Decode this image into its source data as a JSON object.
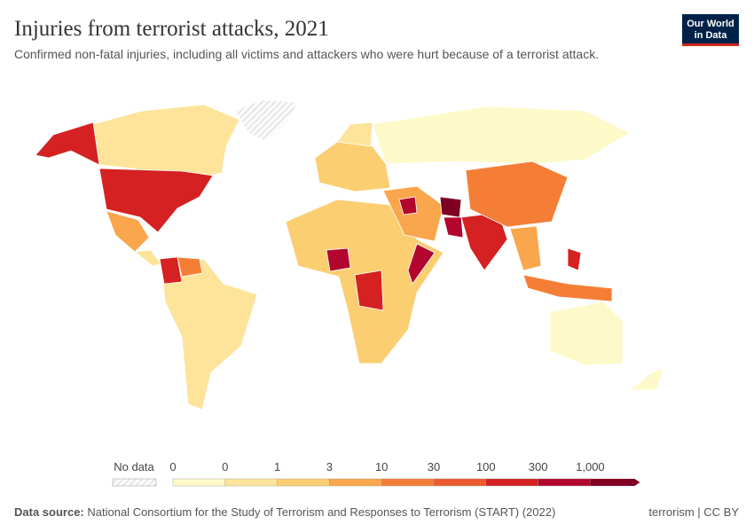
{
  "header": {
    "title": "Injuries from terrorist attacks, 2021",
    "subtitle": "Confirmed non-fatal injuries, including all victims and attackers who were hurt because of a terrorist attack.",
    "logo": [
      "Our World",
      "in Data"
    ]
  },
  "legend": {
    "no_data": "No data",
    "ticks": [
      "0",
      "0",
      "1",
      "3",
      "10",
      "30",
      "100",
      "300",
      "1,000"
    ],
    "colors": [
      "#fef9c9",
      "#fde49a",
      "#fcce72",
      "#f9a64c",
      "#f57e36",
      "#ec5a2e",
      "#d52121",
      "#b3062e",
      "#7e0023"
    ]
  },
  "footer": {
    "source_label": "Data source:",
    "source": "National Consortium for the Study of Terrorism and Responses to Terrorism (START) (2022)",
    "right": "terrorism | CC BY"
  }
}
